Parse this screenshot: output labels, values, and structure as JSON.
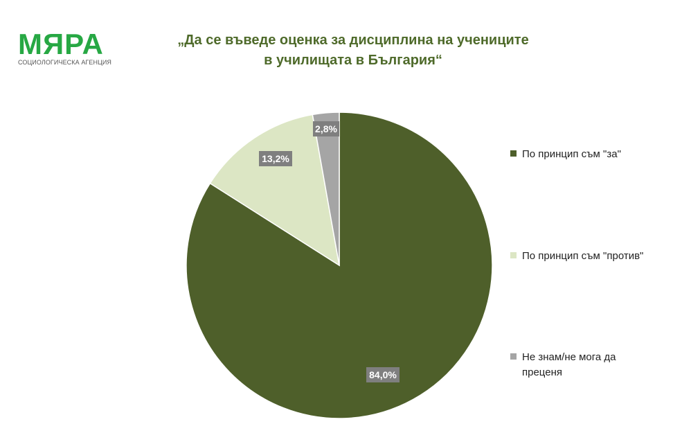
{
  "logo": {
    "name": "МЯРА",
    "subtitle": "СОЦИОЛОГИЧЕСКА АГЕНЦИЯ",
    "color": "#27a844"
  },
  "title": {
    "line1": "„Да се въведе оценка за дисциплина на учениците",
    "line2": "в училищата в България“"
  },
  "chart_data": {
    "type": "pie",
    "title": "„Да се въведе оценка за дисциплина на учениците в училищата в България“",
    "legend_position": "right",
    "slices": [
      {
        "label": "По принцип съм \"за\"",
        "value": 84.0,
        "display": "84,0%",
        "color": "#4e5f2a"
      },
      {
        "label": "По принцип съм \"против\"",
        "value": 13.2,
        "display": "13,2%",
        "color": "#dce6c4"
      },
      {
        "label": "Не знам/не мога да преценя",
        "value": 2.8,
        "display": "2,8%",
        "color": "#a5a5a5"
      }
    ]
  },
  "label_box_color": "#7f7f7f"
}
